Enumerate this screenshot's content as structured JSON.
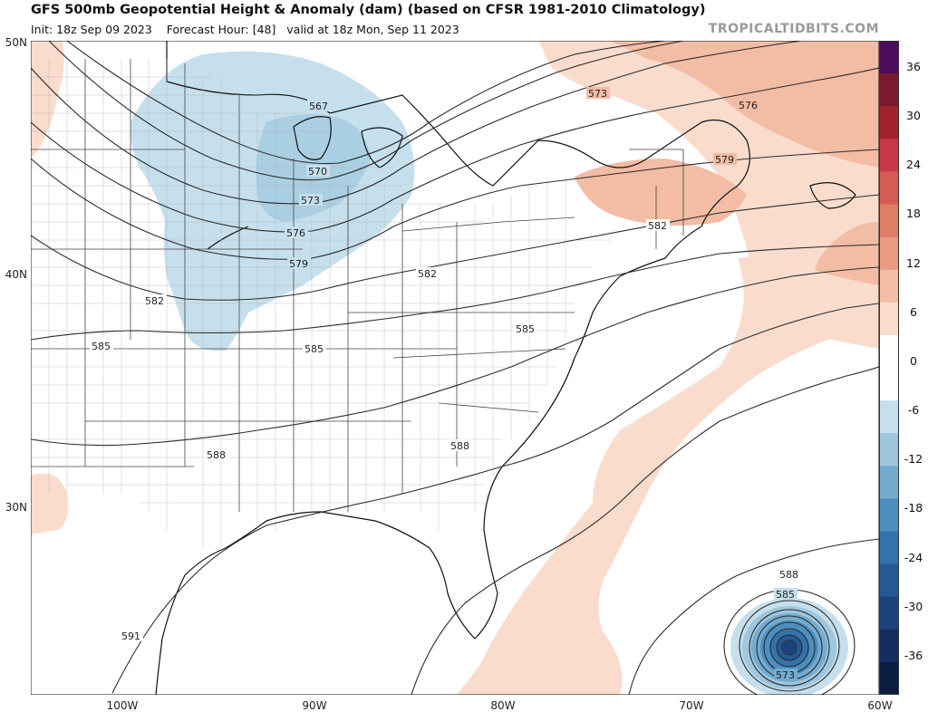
{
  "header": {
    "title": "GFS 500mb Geopotential Height & Anomaly (dam) (based on CFSR 1981-2010 Climatology)",
    "init": "Init: 18z Sep 09 2023",
    "forecast_hour": "Forecast Hour: [48]",
    "valid": "valid at 18z Mon, Sep 11 2023",
    "brand": "TROPICALTIDBITS.COM"
  },
  "axes": {
    "lat_labels": [
      "50N",
      "40N",
      "30N"
    ],
    "lon_labels": [
      "100W",
      "90W",
      "80W",
      "70W",
      "60W"
    ]
  },
  "contour_labels": [
    "567",
    "570",
    "573",
    "576",
    "579",
    "582",
    "585",
    "588",
    "591",
    "573",
    "576",
    "579",
    "582",
    "582",
    "585",
    "585",
    "588",
    "588",
    "585",
    "573"
  ],
  "colorbar": {
    "labels": [
      "36",
      "30",
      "24",
      "18",
      "12",
      "6",
      "0",
      "-6",
      "-12",
      "-18",
      "-24",
      "-30",
      "-36"
    ],
    "colors": [
      "#4b0c5e",
      "#7a1a2e",
      "#a2232f",
      "#c7384a",
      "#d55b55",
      "#e07d67",
      "#e99a80",
      "#f3bca4",
      "#fadccd",
      "#ffffff",
      "#ffffff",
      "#c6dfec",
      "#9ec7df",
      "#74acd0",
      "#4d8fbf",
      "#3473ab",
      "#255994",
      "#1b427a",
      "#122d5e",
      "#0b1c42"
    ]
  }
}
